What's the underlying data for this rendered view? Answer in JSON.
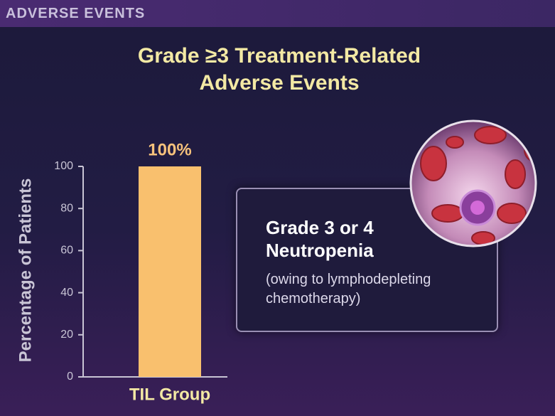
{
  "header": "ADVERSE EVENTS",
  "chart_data": {
    "type": "bar",
    "title": "Grade ≥3 Treatment-Related Adverse Events",
    "ylabel": "Percentage of Patients",
    "categories": [
      "TIL Group"
    ],
    "values": [
      100
    ],
    "value_labels": [
      "100%"
    ],
    "color": "#f9c06e",
    "ylim": [
      0,
      100
    ],
    "yticks": [
      0,
      20,
      40,
      60,
      80,
      100
    ],
    "grid": false,
    "annotation": {
      "heading": "Grade 3 or 4 Neutropenia",
      "note": "(owing to lymphodepleting chemotherapy)"
    }
  }
}
